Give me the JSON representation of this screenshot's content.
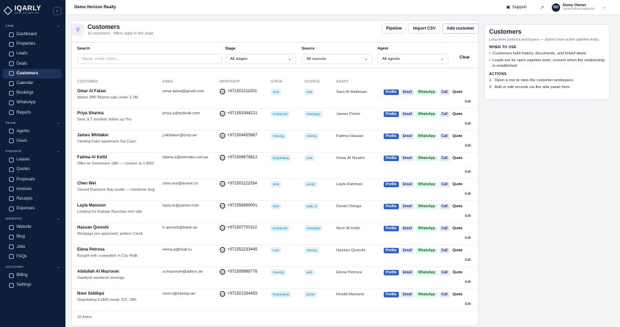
{
  "brand": {
    "name": "IQARLY",
    "sub": "REAL ESTATE OS"
  },
  "sidebar": {
    "sections": [
      {
        "label": "CRM",
        "items": [
          {
            "label": "Dashboard"
          },
          {
            "label": "Properties"
          },
          {
            "label": "Leads"
          },
          {
            "label": "Deals"
          },
          {
            "label": "Customers"
          },
          {
            "label": "Calendar"
          },
          {
            "label": "Bookings"
          },
          {
            "label": "WhatsApp"
          },
          {
            "label": "Reports"
          }
        ]
      },
      {
        "label": "TEAM",
        "items": [
          {
            "label": "Agents"
          },
          {
            "label": "Users"
          }
        ]
      },
      {
        "label": "FINANCE",
        "items": [
          {
            "label": "Leases"
          },
          {
            "label": "Quotes"
          },
          {
            "label": "Proposals"
          },
          {
            "label": "Invoices"
          },
          {
            "label": "Receipts"
          },
          {
            "label": "Expenses"
          }
        ]
      },
      {
        "label": "WEBSITE",
        "items": [
          {
            "label": "Website"
          },
          {
            "label": "Blog"
          },
          {
            "label": "Jobs"
          },
          {
            "label": "FAQs"
          }
        ]
      },
      {
        "label": "ACCOUNT",
        "items": [
          {
            "label": "Billing"
          },
          {
            "label": "Settings"
          }
        ]
      }
    ],
    "active": "Customers"
  },
  "topbar": {
    "org": "Demo Horizon Realty",
    "support": "Support",
    "avatar_initials": "DO",
    "user_name": "Demo Owner",
    "user_email": "owner@demo.iqarly.com"
  },
  "page": {
    "title": "Customers",
    "subtitle": "10 customers · filters apply to this page",
    "pipeline_btn": "Pipeline",
    "import_btn": "Import CSV",
    "add_btn": "Add customer"
  },
  "filters": {
    "search_label": "Search",
    "search_placeholder": "Name, email, notes…",
    "stage_label": "Stage",
    "stage_value": "All stages",
    "source_label": "Source",
    "source_value": "All sources",
    "agent_label": "Agent",
    "agent_value": "All agents",
    "clear": "Clear"
  },
  "columns": [
    "CUSTOMER",
    "EMAIL",
    "WHATSAPP",
    "STAGE",
    "SOURCE",
    "AGENT"
  ],
  "actions": {
    "profile": "Profile",
    "email": "Email",
    "whatsapp": "WhatsApp",
    "call": "Call",
    "quote": "Quote",
    "edit": "Edit"
  },
  "customers": [
    {
      "name": "Omar Al Falasi",
      "note": "Wants 2BR Marina sale under 2.2M",
      "email": "omar.falasi@gmail.com",
      "whatsapp": "+971502211001",
      "stage": "New",
      "source": "web",
      "agent": "Sara Al Maktoum"
    },
    {
      "name": "Priya Sharma",
      "note": "Sent JLT shortlist; follow up Thu",
      "email": "priya.s@outlook.com",
      "whatsapp": "+971553344221",
      "stage": "Contacted",
      "source": "whatsapp",
      "agent": "James Porter"
    },
    {
      "name": "James Whitaker",
      "note": "Viewing Palm apartment Sat 11am",
      "email": "j.whitaker@corp.ae",
      "whatsapp": "+971504455667",
      "stage": "Viewing",
      "source": "referral",
      "agent": "Fatima Hassan"
    },
    {
      "name": "Fatima Al Ketbi",
      "note": "Offer on Downtown 1BR — counter at 1.85M",
      "email": "fatima.k@emirates.net.ae",
      "whatsapp": "+971506678812",
      "stage": "Negotiating",
      "source": "web",
      "agent": "Omar Al Nuaimi"
    },
    {
      "name": "Chen Wei",
      "note": "Closed Business Bay studio — handover Aug",
      "email": "chen.wei@invest.cn",
      "whatsapp": "+971501122334",
      "stage": "Won",
      "source": "portal",
      "agent": "Layla Rahman"
    },
    {
      "name": "Layla Mansoor",
      "note": "Looking for Arabian Ranches rent villa",
      "email": "layla.m@yahoo.com",
      "whatsapp": "+971558899001",
      "stage": "New",
      "source": "walk_in",
      "agent": "Daniel Ortega"
    },
    {
      "name": "Hassan Qureshi",
      "note": "Mortgage pre-approved; prefers Creek",
      "email": "h.qureshi@bank.ae",
      "whatsapp": "+971507700112",
      "stage": "Contacted",
      "source": "whatsapp",
      "agent": "Noor Al Ketbi"
    },
    {
      "name": "Elena Petrova",
      "note": "Bought with competitor in City Walk",
      "email": "elena.p@mail.ru",
      "whatsapp": "+971552233445",
      "stage": "Lost",
      "source": "referral",
      "agent": "Hassan Qureshi"
    },
    {
      "name": "Abdullah Al Mazrouei",
      "note": "Saadiyat weekend viewings",
      "email": "a.mazrouei@adnoc.ae",
      "whatsapp": "+971509988776",
      "stage": "Viewing",
      "source": "web",
      "agent": "Elena Petrova"
    },
    {
      "name": "Noor Siddiqui",
      "note": "Negotiating EJARI-ready JVC 1BR",
      "email": "noor.s@startup.ae",
      "whatsapp": "+971501334455",
      "stage": "Negotiating",
      "source": "portal",
      "agent": "Khalid Mansoor"
    }
  ],
  "footer": "10 items",
  "stage_colors": {
    "New": "#e0f2fe",
    "Contacted": "#e0f2fe",
    "Viewing": "#e0f2fe",
    "Negotiating": "#e0f2fe",
    "Won": "#e0f2fe",
    "Lost": "#e0f2fe"
  },
  "panel": {
    "title": "Customers",
    "desc": "Long-term contacts and buyers — distinct from active pipeline leads.",
    "when_label": "WHEN TO USE",
    "when": [
      "Customers hold history, documents, and linked deals.",
      "Leads are for open pipeline work; convert when the relationship is established."
    ],
    "actions_label": "ACTIONS",
    "actions": [
      "Open a row to view the customer workspace.",
      "Add or edit records via the side panel form."
    ]
  }
}
